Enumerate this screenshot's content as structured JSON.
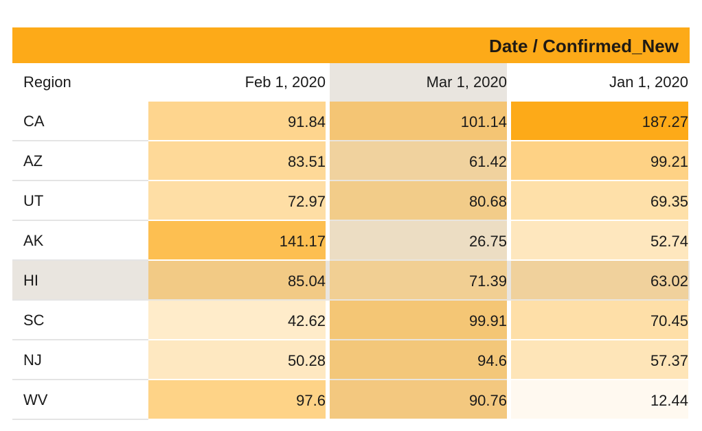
{
  "chart_data": {
    "type": "table",
    "title": "Date / Confirmed_New",
    "row_header": "Region",
    "columns": [
      "Feb 1, 2020",
      "Mar 1, 2020",
      "Jan 1, 2020"
    ],
    "rows": [
      {
        "label": "CA",
        "values": [
          "91.84",
          "101.14",
          "187.27"
        ]
      },
      {
        "label": "AZ",
        "values": [
          "83.51",
          "61.42",
          "99.21"
        ]
      },
      {
        "label": "UT",
        "values": [
          "72.97",
          "80.68",
          "69.35"
        ]
      },
      {
        "label": "AK",
        "values": [
          "141.17",
          "26.75",
          "52.74"
        ]
      },
      {
        "label": "HI",
        "values": [
          "85.04",
          "71.39",
          "63.02"
        ]
      },
      {
        "label": "SC",
        "values": [
          "42.62",
          "99.91",
          "70.45"
        ]
      },
      {
        "label": "NJ",
        "values": [
          "50.28",
          "94.6",
          "57.37"
        ]
      },
      {
        "label": "WV",
        "values": [
          "97.6",
          "90.76",
          "12.44"
        ]
      }
    ],
    "heatmap_color": "#fdaa18",
    "value_range": [
      0,
      187.27
    ],
    "highlighted_column": "Mar 1, 2020",
    "highlighted_row": "HI",
    "highlight_color": "#e9e5df"
  }
}
